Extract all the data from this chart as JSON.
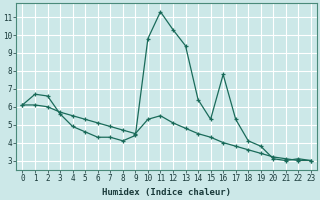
{
  "xlabel": "Humidex (Indice chaleur)",
  "bg_color": "#cce8e8",
  "line_color": "#1a6b5a",
  "grid_color": "#ffffff",
  "xlim": [
    -0.5,
    23.5
  ],
  "ylim": [
    2.5,
    11.8
  ],
  "yticks": [
    3,
    4,
    5,
    6,
    7,
    8,
    9,
    10,
    11
  ],
  "xticks": [
    0,
    1,
    2,
    3,
    4,
    5,
    6,
    7,
    8,
    9,
    10,
    11,
    12,
    13,
    14,
    15,
    16,
    17,
    18,
    19,
    20,
    21,
    22,
    23
  ],
  "line1_x": [
    0,
    1,
    2,
    3,
    4,
    5,
    6,
    7,
    8,
    9,
    10,
    11,
    12,
    13,
    14,
    15,
    16,
    17,
    18,
    19,
    20,
    21,
    22,
    23
  ],
  "line1_y": [
    6.1,
    6.7,
    6.6,
    5.6,
    4.9,
    4.6,
    4.3,
    4.3,
    4.1,
    4.4,
    9.8,
    11.3,
    10.3,
    9.4,
    6.4,
    5.3,
    7.8,
    5.3,
    4.1,
    3.8,
    3.1,
    3.0,
    3.1,
    3.0
  ],
  "line2_x": [
    0,
    1,
    2,
    3,
    4,
    5,
    6,
    7,
    8,
    9,
    10,
    11,
    12,
    13,
    14,
    15,
    16,
    17,
    18,
    19,
    20,
    21,
    22,
    23
  ],
  "line2_y": [
    6.1,
    6.1,
    6.0,
    5.7,
    5.5,
    5.3,
    5.1,
    4.9,
    4.7,
    4.5,
    5.3,
    5.5,
    5.1,
    4.8,
    4.5,
    4.3,
    4.0,
    3.8,
    3.6,
    3.4,
    3.2,
    3.1,
    3.0,
    3.0
  ]
}
